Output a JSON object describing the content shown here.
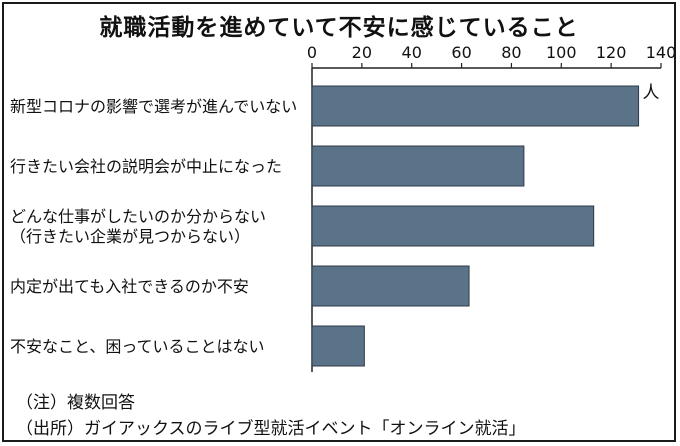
{
  "chart_data": {
    "type": "bar",
    "orientation": "horizontal",
    "title": "就職活動を進めていて不安に感じていること",
    "unit": "人",
    "xlim": [
      0,
      140
    ],
    "ticks": [
      "0",
      "20",
      "40",
      "60",
      "80",
      "100",
      "120",
      "140"
    ],
    "categories": [
      [
        "新型コロナの影響で選考が進んでいない"
      ],
      [
        "行きたい会社の説明会が中止になった"
      ],
      [
        "どんな仕事がしたいのか分からない",
        "（行きたい企業が見つからない）"
      ],
      [
        "内定が出ても入社できるのか不安"
      ],
      [
        "不安なこと、困っていることはない"
      ]
    ],
    "values": [
      131,
      85,
      113,
      63,
      21
    ],
    "grid": false,
    "bar_color": "#5b7389"
  },
  "notes": {
    "note": "（注）複数回答",
    "source": "（出所）ガイアックスのライブ型就活イベント「オンライン就活」"
  }
}
